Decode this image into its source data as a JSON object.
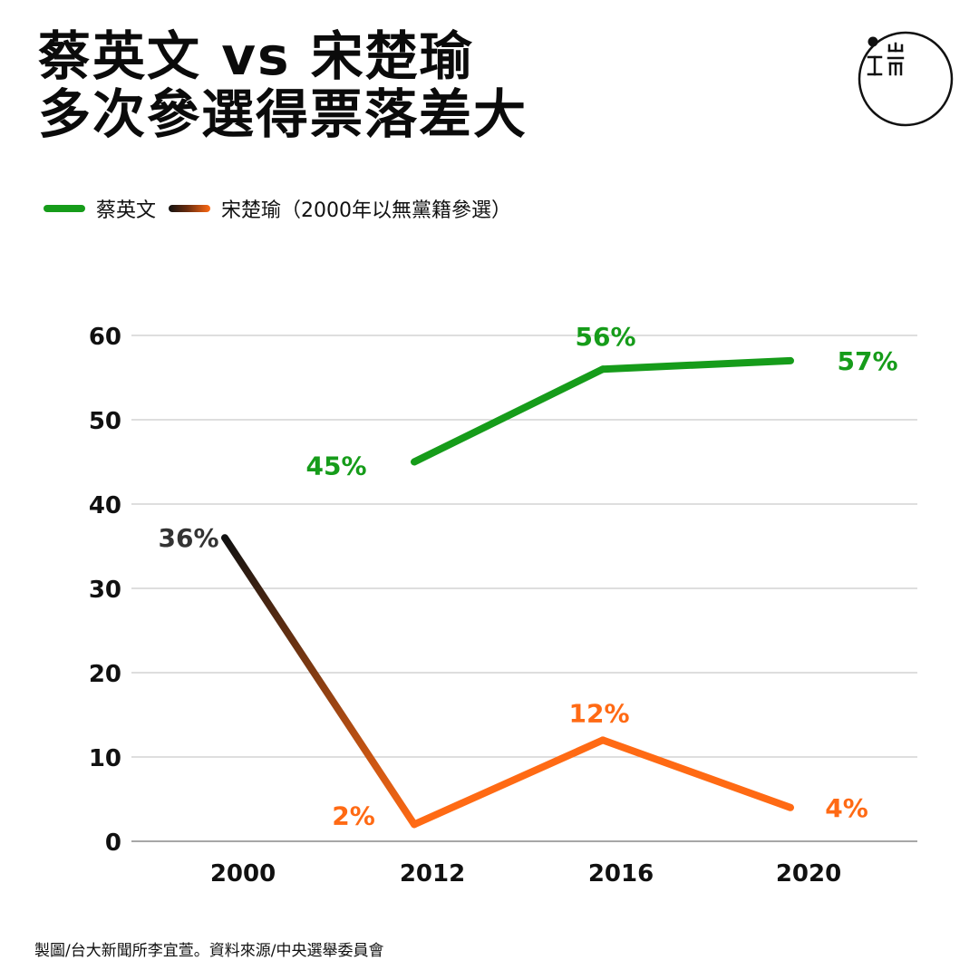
{
  "title": {
    "line1": "蔡英文 vs 宋楚瑜",
    "line2": "多次參選得票落差大"
  },
  "logo": {
    "icon": "publisher-logo-icon"
  },
  "legend": {
    "items": [
      {
        "label": "蔡英文",
        "color": "#169c1a"
      },
      {
        "label": "宋楚瑜（2000年以無黨籍參選）",
        "color": "#ff6a14"
      }
    ]
  },
  "footer": "製圖/台大新聞所李宜萱。資料來源/中央選舉委員會",
  "chart_data": {
    "type": "line",
    "categories": [
      "2000",
      "2012",
      "2016",
      "2020"
    ],
    "series": [
      {
        "name": "蔡英文",
        "values": [
          null,
          45,
          56,
          57
        ],
        "labels": [
          null,
          "45%",
          "56%",
          "57%"
        ],
        "color": "#169c1a"
      },
      {
        "name": "宋楚瑜（2000年以無黨籍參選）",
        "values": [
          36,
          2,
          12,
          4
        ],
        "labels": [
          "36%",
          "2%",
          "12%",
          "4%"
        ],
        "color": "#ff6a14",
        "start_color": "#111111",
        "label_colors": [
          "#333333",
          "#ff6a14",
          "#ff6a14",
          "#ff6a14"
        ]
      }
    ],
    "yticks": [
      "0",
      "10",
      "20",
      "30",
      "40",
      "50",
      "60"
    ],
    "ylim": [
      0,
      60
    ],
    "grid": true
  }
}
